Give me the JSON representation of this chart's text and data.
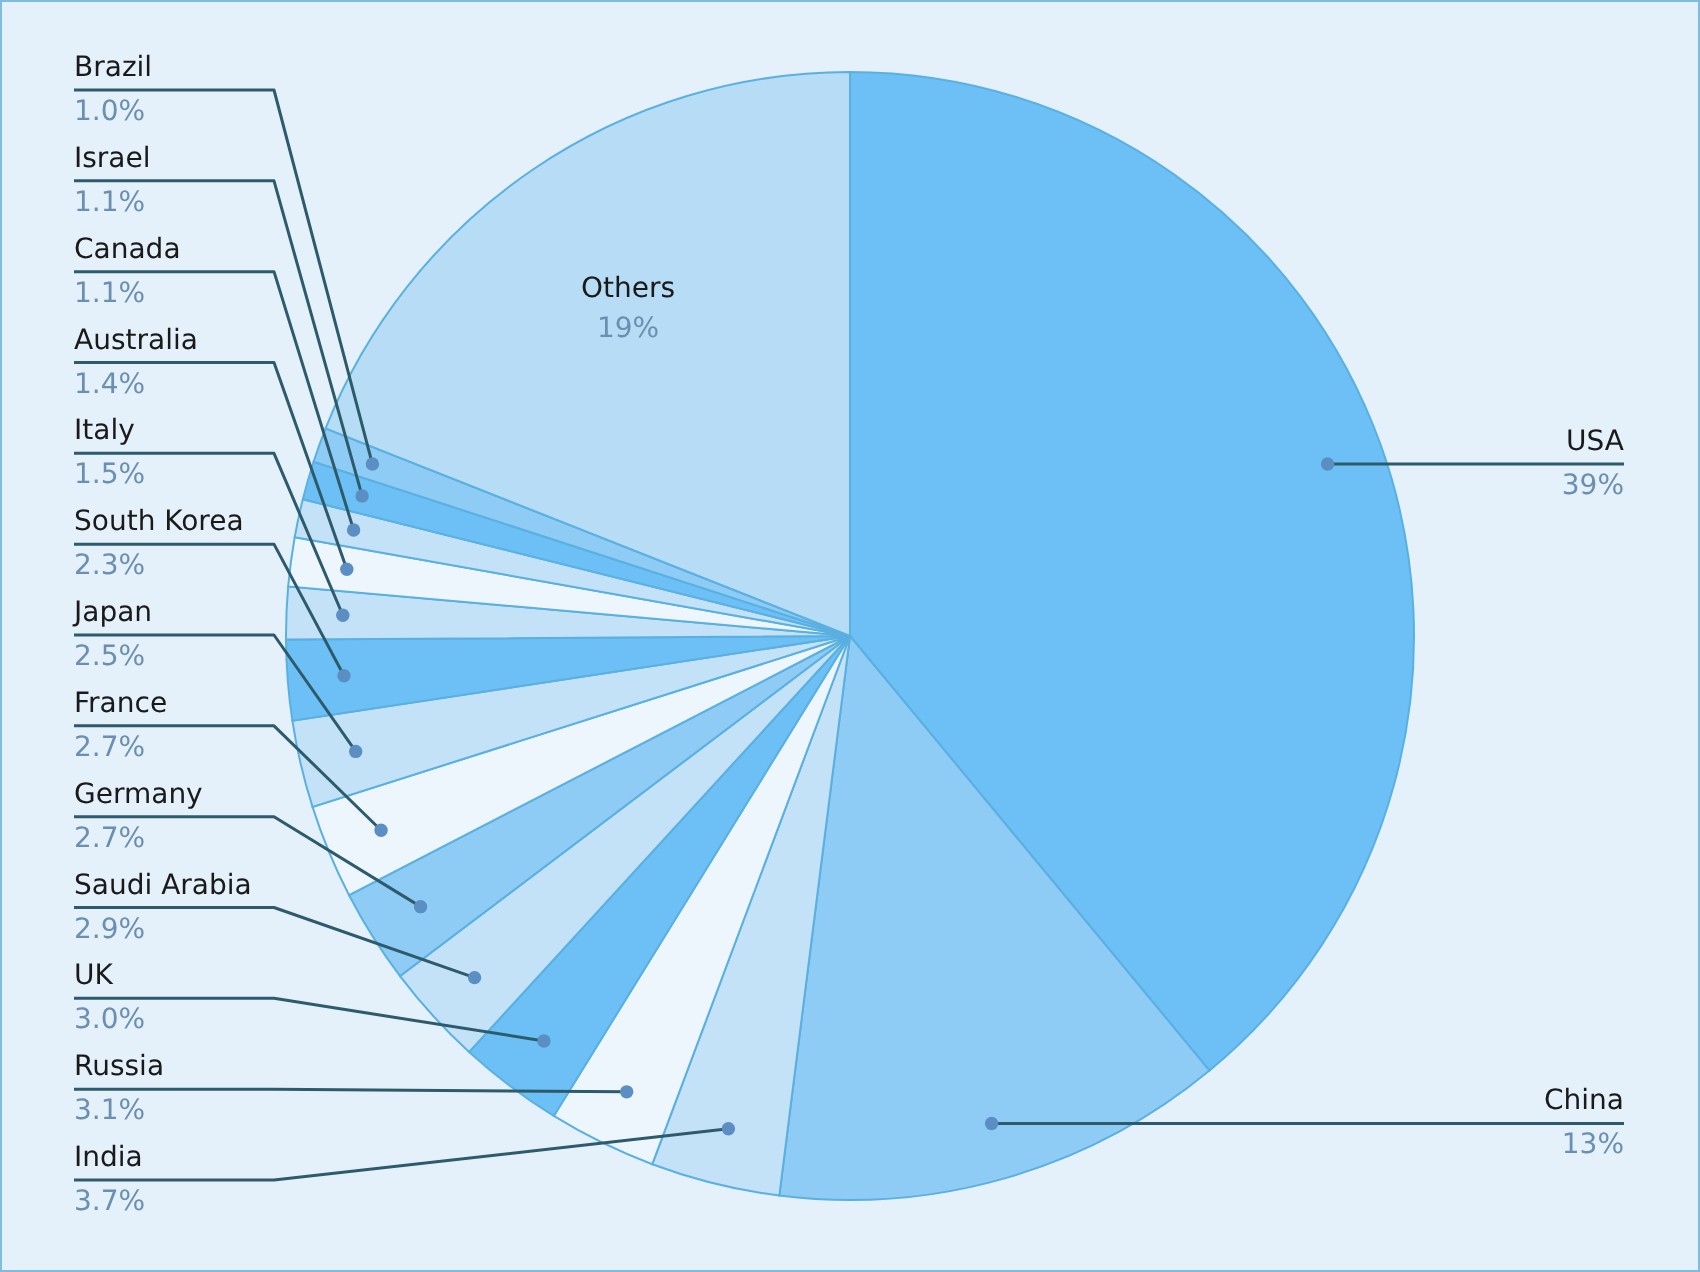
{
  "chart_data": {
    "type": "pie",
    "categories": [
      "USA",
      "China",
      "India",
      "Russia",
      "UK",
      "Saudi Arabia",
      "Germany",
      "France",
      "Japan",
      "South Korea",
      "Italy",
      "Australia",
      "Canada",
      "Israel",
      "Brazil",
      "Others"
    ],
    "values": [
      39,
      13,
      3.7,
      3.1,
      3.0,
      2.9,
      2.7,
      2.7,
      2.5,
      2.3,
      1.5,
      1.4,
      1.1,
      1.1,
      1.0,
      19
    ],
    "value_labels": [
      "39%",
      "13%",
      "3.7%",
      "3.1%",
      "3.0%",
      "2.9%",
      "2.7%",
      "2.7%",
      "2.5%",
      "2.3%",
      "1.5%",
      "1.4%",
      "1.1%",
      "1.1%",
      "1.0%",
      "19%"
    ],
    "colors": [
      "#6cc0f5",
      "#8ecbf5",
      "#c4e2f7",
      "#eef6fd",
      "#6cc0f5",
      "#c4e2f7",
      "#8ecbf5",
      "#eef6fd",
      "#c4e2f7",
      "#6cc0f5",
      "#c4e2f7",
      "#eef6fd",
      "#c4e2f7",
      "#6cc0f5",
      "#8ecbf5",
      "#b7dcf5"
    ]
  }
}
